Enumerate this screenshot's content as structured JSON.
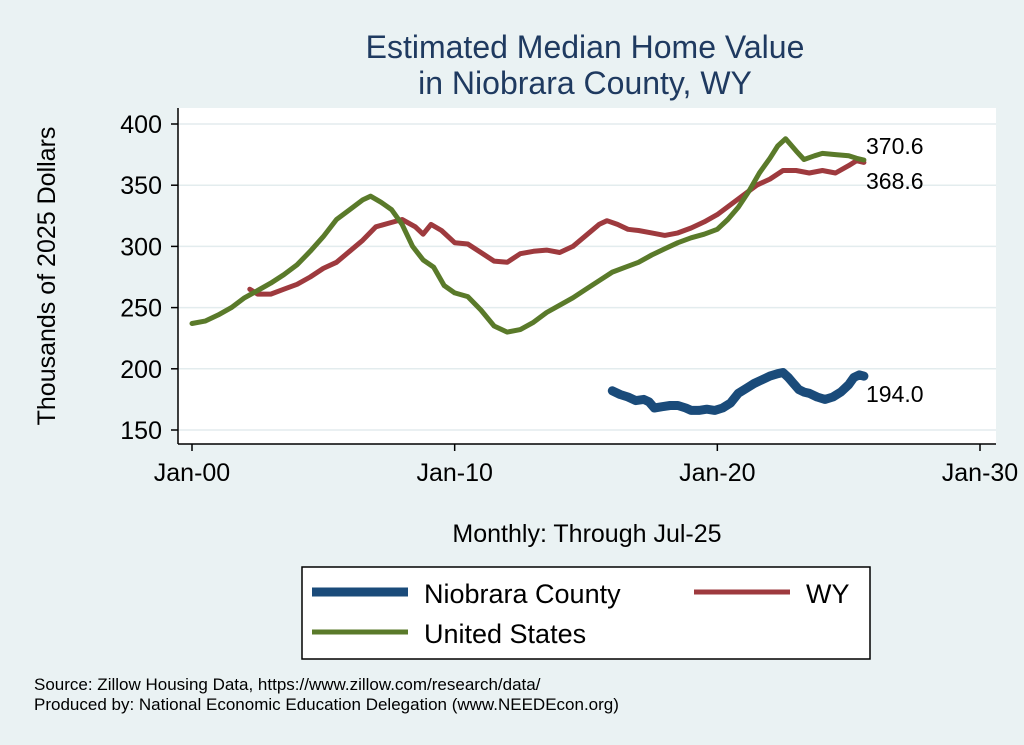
{
  "chart_data": {
    "type": "line",
    "title_lines": [
      "Estimated Median Home Value",
      "in Niobrara County, WY"
    ],
    "xlabel": "Monthly: Through Jul-25",
    "ylabel": "Thousands of 2025 Dollars",
    "xlim": [
      2000,
      2030
    ],
    "ylim": [
      140,
      410
    ],
    "x_ticks": [
      {
        "value": 2000,
        "label": "Jan-00"
      },
      {
        "value": 2010,
        "label": "Jan-10"
      },
      {
        "value": 2020,
        "label": "Jan-20"
      },
      {
        "value": 2030,
        "label": "Jan-30"
      }
    ],
    "y_ticks": [
      {
        "value": 150,
        "label": "150"
      },
      {
        "value": 200,
        "label": "200"
      },
      {
        "value": 250,
        "label": "250"
      },
      {
        "value": 300,
        "label": "300"
      },
      {
        "value": 350,
        "label": "350"
      },
      {
        "value": 400,
        "label": "400"
      }
    ],
    "grid": true,
    "series": [
      {
        "name": "Niobrara County",
        "color": "#1a4b7a",
        "end_label": "194.0",
        "points": [
          [
            2016.0,
            182
          ],
          [
            2016.3,
            179
          ],
          [
            2016.6,
            177
          ],
          [
            2016.9,
            174
          ],
          [
            2017.2,
            175
          ],
          [
            2017.4,
            173
          ],
          [
            2017.6,
            168
          ],
          [
            2017.9,
            169
          ],
          [
            2018.2,
            170
          ],
          [
            2018.5,
            170
          ],
          [
            2018.8,
            168
          ],
          [
            2019.0,
            166
          ],
          [
            2019.3,
            166
          ],
          [
            2019.6,
            167
          ],
          [
            2019.9,
            166
          ],
          [
            2020.2,
            168
          ],
          [
            2020.5,
            172
          ],
          [
            2020.8,
            180
          ],
          [
            2021.1,
            184
          ],
          [
            2021.4,
            188
          ],
          [
            2021.7,
            191
          ],
          [
            2022.0,
            194
          ],
          [
            2022.3,
            196
          ],
          [
            2022.5,
            197
          ],
          [
            2022.7,
            193
          ],
          [
            2022.9,
            188
          ],
          [
            2023.1,
            183
          ],
          [
            2023.3,
            181
          ],
          [
            2023.5,
            180
          ],
          [
            2023.8,
            177
          ],
          [
            2024.1,
            175
          ],
          [
            2024.4,
            177
          ],
          [
            2024.7,
            181
          ],
          [
            2025.0,
            187
          ],
          [
            2025.2,
            193
          ],
          [
            2025.4,
            195
          ],
          [
            2025.58,
            194
          ]
        ]
      },
      {
        "name": "WY",
        "color": "#9e3a3e",
        "end_label": "368.6",
        "points": [
          [
            2002.2,
            265
          ],
          [
            2002.5,
            261
          ],
          [
            2003.0,
            261
          ],
          [
            2003.5,
            265
          ],
          [
            2004.0,
            269
          ],
          [
            2004.5,
            275
          ],
          [
            2005.0,
            282
          ],
          [
            2005.5,
            287
          ],
          [
            2006.0,
            296
          ],
          [
            2006.5,
            305
          ],
          [
            2007.0,
            316
          ],
          [
            2007.5,
            319
          ],
          [
            2008.0,
            322
          ],
          [
            2008.5,
            316
          ],
          [
            2008.8,
            310
          ],
          [
            2009.1,
            318
          ],
          [
            2009.5,
            313
          ],
          [
            2010.0,
            303
          ],
          [
            2010.5,
            302
          ],
          [
            2011.0,
            295
          ],
          [
            2011.5,
            288
          ],
          [
            2012.0,
            287
          ],
          [
            2012.5,
            294
          ],
          [
            2013.0,
            296
          ],
          [
            2013.5,
            297
          ],
          [
            2014.0,
            295
          ],
          [
            2014.5,
            300
          ],
          [
            2015.0,
            309
          ],
          [
            2015.5,
            318
          ],
          [
            2015.8,
            321
          ],
          [
            2016.2,
            318
          ],
          [
            2016.6,
            314
          ],
          [
            2017.0,
            313
          ],
          [
            2017.5,
            311
          ],
          [
            2018.0,
            309
          ],
          [
            2018.5,
            311
          ],
          [
            2019.0,
            315
          ],
          [
            2019.5,
            320
          ],
          [
            2020.0,
            326
          ],
          [
            2020.5,
            334
          ],
          [
            2021.0,
            342
          ],
          [
            2021.5,
            350
          ],
          [
            2022.0,
            355
          ],
          [
            2022.5,
            362
          ],
          [
            2023.0,
            362
          ],
          [
            2023.5,
            360
          ],
          [
            2024.0,
            362
          ],
          [
            2024.5,
            360
          ],
          [
            2025.0,
            366
          ],
          [
            2025.3,
            370
          ],
          [
            2025.58,
            368.6
          ]
        ]
      },
      {
        "name": "United States",
        "color": "#5a7a2a",
        "end_label": "370.6",
        "points": [
          [
            2000.0,
            237
          ],
          [
            2000.5,
            239
          ],
          [
            2001.0,
            244
          ],
          [
            2001.5,
            250
          ],
          [
            2002.0,
            258
          ],
          [
            2002.5,
            264
          ],
          [
            2003.0,
            270
          ],
          [
            2003.5,
            277
          ],
          [
            2004.0,
            285
          ],
          [
            2004.5,
            296
          ],
          [
            2005.0,
            308
          ],
          [
            2005.5,
            322
          ],
          [
            2006.0,
            330
          ],
          [
            2006.5,
            338
          ],
          [
            2006.8,
            341
          ],
          [
            2007.2,
            336
          ],
          [
            2007.6,
            330
          ],
          [
            2008.0,
            318
          ],
          [
            2008.4,
            300
          ],
          [
            2008.8,
            289
          ],
          [
            2009.2,
            283
          ],
          [
            2009.6,
            268
          ],
          [
            2010.0,
            262
          ],
          [
            2010.5,
            259
          ],
          [
            2011.0,
            248
          ],
          [
            2011.5,
            235
          ],
          [
            2012.0,
            230
          ],
          [
            2012.5,
            232
          ],
          [
            2013.0,
            238
          ],
          [
            2013.5,
            246
          ],
          [
            2014.0,
            252
          ],
          [
            2014.5,
            258
          ],
          [
            2015.0,
            265
          ],
          [
            2015.5,
            272
          ],
          [
            2016.0,
            279
          ],
          [
            2016.5,
            283
          ],
          [
            2017.0,
            287
          ],
          [
            2017.5,
            293
          ],
          [
            2018.0,
            298
          ],
          [
            2018.5,
            303
          ],
          [
            2019.0,
            307
          ],
          [
            2019.5,
            310
          ],
          [
            2020.0,
            314
          ],
          [
            2020.4,
            322
          ],
          [
            2020.8,
            332
          ],
          [
            2021.2,
            345
          ],
          [
            2021.6,
            360
          ],
          [
            2022.0,
            372
          ],
          [
            2022.3,
            382
          ],
          [
            2022.6,
            388
          ],
          [
            2023.0,
            378
          ],
          [
            2023.3,
            371
          ],
          [
            2023.7,
            374
          ],
          [
            2024.0,
            376
          ],
          [
            2024.5,
            375
          ],
          [
            2025.0,
            374
          ],
          [
            2025.3,
            372
          ],
          [
            2025.58,
            370.6
          ]
        ]
      }
    ],
    "legend": {
      "position": "bottom",
      "entries": [
        "Niobrara County",
        "WY",
        "United States"
      ]
    },
    "source_note": "Source: Zillow Housing Data, https://www.zillow.com/research/data/",
    "producer_note": "Produced by: National Economic Education Delegation (www.NEEDEcon.org)"
  }
}
